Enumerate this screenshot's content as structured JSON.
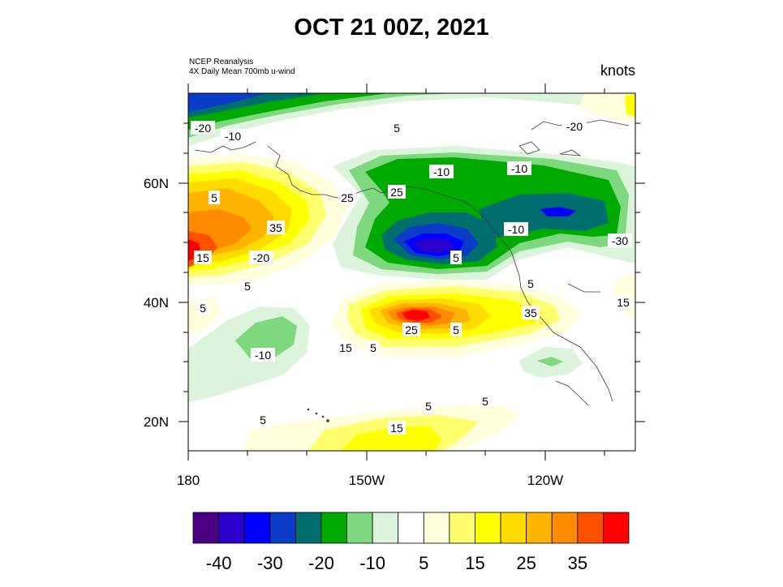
{
  "title": "OCT 21 00Z, 2021",
  "source_line1": "NCEP Reanalysis",
  "source_line2": "4X Daily Mean 700mb u-wind",
  "units": "knots",
  "lat_ticks": [
    "60N",
    "40N",
    "20N"
  ],
  "lon_ticks": [
    "180",
    "150W",
    "120W"
  ],
  "colorbar": {
    "colors": [
      "#4b0082",
      "#2c00cc",
      "#0000ff",
      "#0a3cc8",
      "#006e6e",
      "#00aa00",
      "#7ed87e",
      "#dcf4dc",
      "#ffffff",
      "#ffffdc",
      "#ffff6e",
      "#ffff00",
      "#ffdc00",
      "#ffb400",
      "#ff8c00",
      "#ff5000",
      "#ff0000"
    ],
    "labels": [
      "-40",
      "-30",
      "-20",
      "-10",
      "5",
      "15",
      "25",
      "35"
    ]
  },
  "contour_labels": [
    "-20",
    "-10",
    "5",
    "-20",
    "-10",
    "-10",
    "25",
    "5",
    "25",
    "35",
    "15",
    "-20",
    "-10",
    "-30",
    "5",
    "5",
    "5",
    "5",
    "15",
    "35",
    "25",
    "5",
    "15",
    "-10",
    "5",
    "5",
    "15",
    "5",
    "5"
  ]
}
